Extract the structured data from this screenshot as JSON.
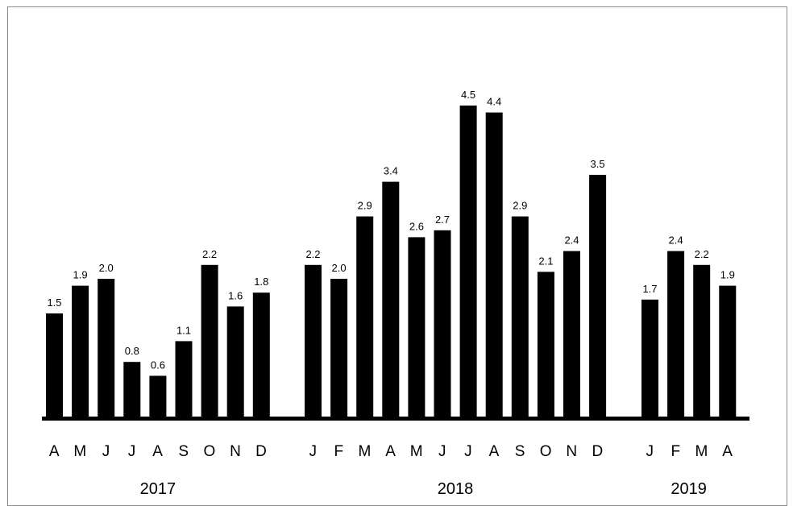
{
  "chart_data": {
    "type": "bar",
    "title": "",
    "xlabel": "",
    "ylabel": "",
    "ylim": [
      0,
      5
    ],
    "grid": false,
    "legend": "none",
    "bar_color": "#000000",
    "groups": [
      {
        "label": "2017",
        "categories": [
          "A",
          "M",
          "J",
          "J",
          "A",
          "S",
          "O",
          "N",
          "D"
        ],
        "values": [
          1.5,
          1.9,
          2.0,
          0.8,
          0.6,
          1.1,
          2.2,
          1.6,
          1.8
        ]
      },
      {
        "label": "2018",
        "categories": [
          "J",
          "F",
          "M",
          "A",
          "M",
          "J",
          "J",
          "A",
          "S",
          "O",
          "N",
          "D"
        ],
        "values": [
          2.2,
          2.0,
          2.9,
          3.4,
          2.6,
          2.7,
          4.5,
          4.4,
          2.9,
          2.1,
          2.4,
          3.5
        ]
      },
      {
        "label": "2019",
        "categories": [
          "J",
          "F",
          "M",
          "A"
        ],
        "values": [
          1.7,
          2.4,
          2.2,
          1.9
        ]
      }
    ]
  }
}
